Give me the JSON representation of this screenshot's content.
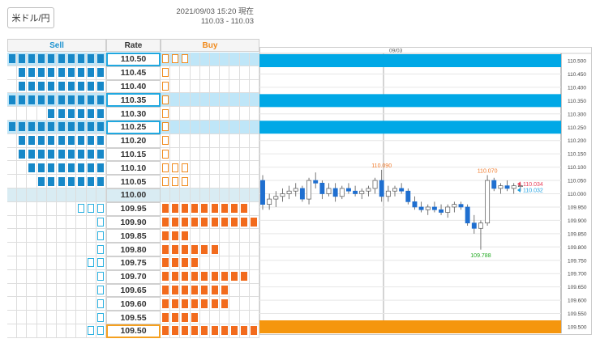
{
  "header": {
    "pair_label": "米ドル/円",
    "timestamp": "2021/09/03 15:20 現在",
    "range": "110.03 - 110.03"
  },
  "board": {
    "columns": {
      "sell": "Sell",
      "rate": "Rate",
      "buy": "Buy"
    },
    "rows": [
      {
        "rate": "110.50",
        "sell": [
          1,
          1,
          1,
          1,
          1,
          1,
          1,
          1,
          1,
          1
        ],
        "buy": [
          2,
          2,
          2
        ],
        "highlight": "sell"
      },
      {
        "rate": "110.45",
        "sell": [
          0,
          1,
          1,
          1,
          1,
          1,
          1,
          1,
          1,
          1
        ],
        "buy": [
          2
        ],
        "highlight": ""
      },
      {
        "rate": "110.40",
        "sell": [
          0,
          1,
          1,
          1,
          1,
          1,
          1,
          1,
          1,
          1
        ],
        "buy": [
          2
        ],
        "highlight": ""
      },
      {
        "rate": "110.35",
        "sell": [
          1,
          1,
          1,
          1,
          1,
          1,
          1,
          1,
          1,
          1
        ],
        "buy": [
          2
        ],
        "highlight": "sell"
      },
      {
        "rate": "110.30",
        "sell": [
          0,
          0,
          0,
          0,
          1,
          1,
          1,
          1,
          1,
          1
        ],
        "buy": [
          2
        ],
        "highlight": ""
      },
      {
        "rate": "110.25",
        "sell": [
          1,
          1,
          1,
          1,
          1,
          1,
          1,
          1,
          1,
          1
        ],
        "buy": [
          2
        ],
        "highlight": "sell"
      },
      {
        "rate": "110.20",
        "sell": [
          0,
          1,
          1,
          1,
          1,
          1,
          1,
          1,
          1,
          1
        ],
        "buy": [
          2
        ],
        "highlight": ""
      },
      {
        "rate": "110.15",
        "sell": [
          0,
          1,
          1,
          1,
          1,
          1,
          1,
          1,
          1,
          1
        ],
        "buy": [
          2
        ],
        "highlight": ""
      },
      {
        "rate": "110.10",
        "sell": [
          0,
          0,
          1,
          1,
          1,
          1,
          1,
          1,
          1,
          1
        ],
        "buy": [
          2,
          2,
          2
        ],
        "highlight": ""
      },
      {
        "rate": "110.05",
        "sell": [
          0,
          0,
          0,
          1,
          1,
          1,
          1,
          1,
          1,
          1
        ],
        "buy": [
          2,
          2,
          2
        ],
        "highlight": ""
      },
      {
        "rate": "110.00",
        "sell": [],
        "buy": [],
        "highlight": "center"
      },
      {
        "rate": "109.95",
        "sell": [
          0,
          0,
          0,
          0,
          0,
          0,
          0,
          2,
          2,
          2
        ],
        "buy": [
          1,
          1,
          1,
          1,
          1,
          1,
          1,
          1,
          1
        ],
        "highlight": ""
      },
      {
        "rate": "109.90",
        "sell": [
          0,
          0,
          0,
          0,
          0,
          0,
          0,
          0,
          0,
          2
        ],
        "buy": [
          1,
          1,
          1,
          1,
          1,
          1,
          1,
          1,
          1,
          1
        ],
        "highlight": ""
      },
      {
        "rate": "109.85",
        "sell": [
          0,
          0,
          0,
          0,
          0,
          0,
          0,
          0,
          0,
          2
        ],
        "buy": [
          1,
          1,
          1
        ],
        "highlight": ""
      },
      {
        "rate": "109.80",
        "sell": [
          0,
          0,
          0,
          0,
          0,
          0,
          0,
          0,
          0,
          2
        ],
        "buy": [
          1,
          1,
          1,
          1,
          1,
          1
        ],
        "highlight": ""
      },
      {
        "rate": "109.75",
        "sell": [
          0,
          0,
          0,
          0,
          0,
          0,
          0,
          0,
          2,
          2
        ],
        "buy": [
          1,
          1,
          1,
          1
        ],
        "highlight": ""
      },
      {
        "rate": "109.70",
        "sell": [
          0,
          0,
          0,
          0,
          0,
          0,
          0,
          0,
          0,
          2
        ],
        "buy": [
          1,
          1,
          1,
          1,
          1,
          1,
          1,
          1,
          1
        ],
        "highlight": ""
      },
      {
        "rate": "109.65",
        "sell": [
          0,
          0,
          0,
          0,
          0,
          0,
          0,
          0,
          0,
          2
        ],
        "buy": [
          1,
          1,
          1,
          1,
          1,
          1,
          1
        ],
        "highlight": ""
      },
      {
        "rate": "109.60",
        "sell": [
          0,
          0,
          0,
          0,
          0,
          0,
          0,
          0,
          0,
          2
        ],
        "buy": [
          1,
          1,
          1,
          1,
          1,
          1,
          1
        ],
        "highlight": ""
      },
      {
        "rate": "109.55",
        "sell": [
          0,
          0,
          0,
          0,
          0,
          0,
          0,
          0,
          0,
          2
        ],
        "buy": [
          1,
          1,
          1,
          1
        ],
        "highlight": ""
      },
      {
        "rate": "109.50",
        "sell": [
          0,
          0,
          0,
          0,
          0,
          0,
          0,
          0,
          2,
          2
        ],
        "buy": [
          1,
          1,
          1,
          1,
          1,
          1,
          1,
          1,
          1,
          1
        ],
        "highlight": "buy"
      }
    ]
  },
  "chart_data": {
    "type": "candlestick",
    "date_label": "09/03",
    "ylim": [
      109.5,
      110.5
    ],
    "yticks": [
      "110.500",
      "110.450",
      "110.400",
      "110.350",
      "110.300",
      "110.250",
      "110.200",
      "110.150",
      "110.100",
      "110.050",
      "110.000",
      "109.950",
      "109.900",
      "109.850",
      "109.800",
      "109.750",
      "109.700",
      "109.650",
      "109.600",
      "109.550",
      "109.500"
    ],
    "bands": [
      {
        "level": 110.5,
        "color": "#00a8e6"
      },
      {
        "level": 110.35,
        "color": "#00a8e6"
      },
      {
        "level": 110.25,
        "color": "#00a8e6"
      },
      {
        "level": 109.5,
        "color": "#f5960e"
      }
    ],
    "candles": [
      [
        110.05,
        110.07,
        109.94,
        109.96
      ],
      [
        109.96,
        110.0,
        109.94,
        109.98
      ],
      [
        109.98,
        110.01,
        109.95,
        109.99
      ],
      [
        109.99,
        110.02,
        109.97,
        110.0
      ],
      [
        110.0,
        110.03,
        109.98,
        110.01
      ],
      [
        110.01,
        110.04,
        109.99,
        110.02
      ],
      [
        110.02,
        110.03,
        109.97,
        109.98
      ],
      [
        109.98,
        110.06,
        109.96,
        110.05
      ],
      [
        110.05,
        110.08,
        110.02,
        110.04
      ],
      [
        110.04,
        110.05,
        109.98,
        110.0
      ],
      [
        110.0,
        110.04,
        109.99,
        110.02
      ],
      [
        110.02,
        110.04,
        109.97,
        109.99
      ],
      [
        109.99,
        110.03,
        109.98,
        110.02
      ],
      [
        110.02,
        110.04,
        110.0,
        110.01
      ],
      [
        110.01,
        110.03,
        109.99,
        110.0
      ],
      [
        110.0,
        110.02,
        109.98,
        110.01
      ],
      [
        110.01,
        110.03,
        109.99,
        110.02
      ],
      [
        110.02,
        110.06,
        110.0,
        110.05
      ],
      [
        110.05,
        110.09,
        109.97,
        109.99
      ],
      [
        109.99,
        110.03,
        109.97,
        110.01
      ],
      [
        110.01,
        110.03,
        109.99,
        110.02
      ],
      [
        110.02,
        110.04,
        110.0,
        110.01
      ],
      [
        110.01,
        110.02,
        109.96,
        109.97
      ],
      [
        109.97,
        109.99,
        109.94,
        109.95
      ],
      [
        109.95,
        109.97,
        109.93,
        109.94
      ],
      [
        109.94,
        109.96,
        109.92,
        109.95
      ],
      [
        109.95,
        109.97,
        109.93,
        109.94
      ],
      [
        109.94,
        109.96,
        109.92,
        109.93
      ],
      [
        109.93,
        109.96,
        109.91,
        109.95
      ],
      [
        109.95,
        109.97,
        109.93,
        109.96
      ],
      [
        109.96,
        109.97,
        109.94,
        109.95
      ],
      [
        109.95,
        109.96,
        109.88,
        109.89
      ],
      [
        109.89,
        109.92,
        109.85,
        109.87
      ],
      [
        109.87,
        109.9,
        109.79,
        109.89
      ],
      [
        109.89,
        110.07,
        109.88,
        110.05
      ],
      [
        110.05,
        110.06,
        110.01,
        110.02
      ],
      [
        110.02,
        110.04,
        110.0,
        110.03
      ],
      [
        110.03,
        110.05,
        110.01,
        110.02
      ],
      [
        110.02,
        110.04,
        110.0,
        110.03
      ],
      [
        110.03,
        110.04,
        110.01,
        110.03
      ]
    ],
    "annotations": [
      {
        "text": "110.090",
        "candle": 18,
        "value": 110.09,
        "color": "#f07a2a",
        "pos": "above"
      },
      {
        "text": "110.070",
        "candle": 34,
        "value": 110.07,
        "color": "#f07a2a",
        "pos": "above"
      },
      {
        "text": "109.788",
        "candle": 33,
        "value": 109.788,
        "color": "#22aa22",
        "pos": "below"
      }
    ],
    "price_tags": [
      {
        "text": "110.034",
        "value": 110.034,
        "color": "#e8405a"
      },
      {
        "text": "110.032",
        "value": 110.032,
        "color": "#20a0e0"
      }
    ]
  }
}
